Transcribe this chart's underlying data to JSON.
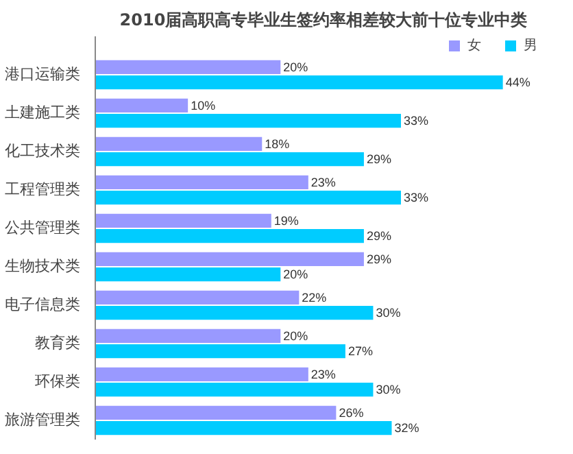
{
  "chart_data": {
    "type": "bar",
    "orientation": "horizontal",
    "title": "2010届高职高专毕业生签约率相差较大前十位专业中类",
    "categories": [
      "港口运输类",
      "土建施工类",
      "化工技术类",
      "工程管理类",
      "公共管理类",
      "生物技术类",
      "电子信息类",
      "教育类",
      "环保类",
      "旅游管理类"
    ],
    "series": [
      {
        "name": "女",
        "color": "#9999ff",
        "values": [
          20,
          10,
          18,
          23,
          19,
          29,
          22,
          20,
          23,
          26
        ],
        "value_labels": [
          "20%",
          "10%",
          "18%",
          "23%",
          "19%",
          "29%",
          "22%",
          "20%",
          "23%",
          "26%"
        ]
      },
      {
        "name": "男",
        "color": "#00ccff",
        "values": [
          44,
          33,
          29,
          33,
          29,
          20,
          30,
          27,
          30,
          32
        ],
        "value_labels": [
          "44%",
          "33%",
          "29%",
          "33%",
          "29%",
          "20%",
          "30%",
          "27%",
          "30%",
          "32%"
        ]
      }
    ],
    "legend": "top right"
  }
}
